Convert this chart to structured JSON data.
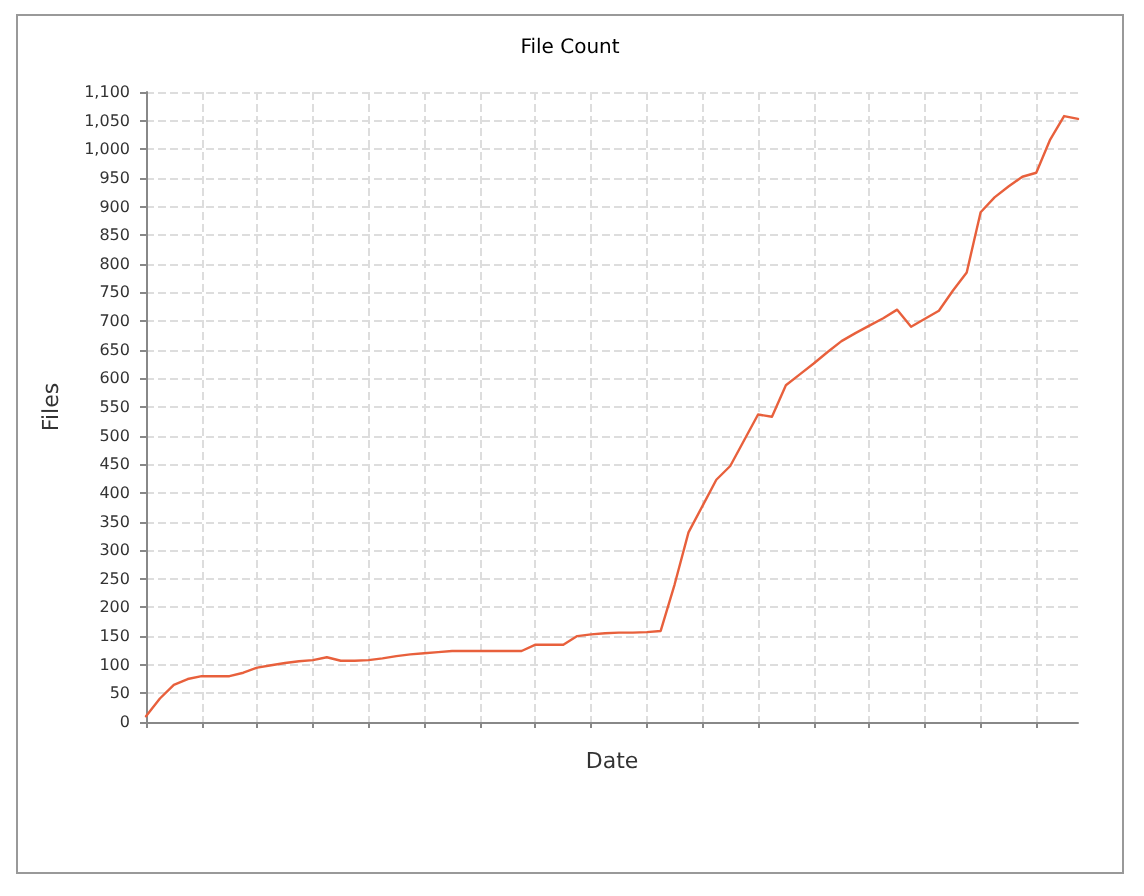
{
  "chart_data": {
    "type": "line",
    "title": "File Count",
    "xlabel": "Date",
    "ylabel": "Files",
    "categories": [
      null,
      null,
      null,
      null,
      null,
      null,
      null,
      null,
      null,
      null,
      null,
      null,
      null,
      null,
      null,
      null,
      null,
      null,
      null,
      null,
      null,
      null,
      null,
      null,
      null,
      null,
      null,
      null,
      null,
      null,
      null,
      null,
      null,
      null,
      null,
      null,
      null,
      null,
      null,
      null,
      null,
      null,
      null,
      null,
      null,
      null,
      null,
      null,
      null,
      null,
      null,
      null,
      null,
      null,
      null,
      null,
      null,
      null,
      null,
      null,
      null,
      null,
      null,
      null,
      null,
      null,
      null,
      null
    ],
    "series": [
      {
        "color": "#e8603c",
        "values": [
          10,
          41,
          65,
          75,
          80,
          80,
          80,
          86,
          95,
          99,
          103,
          106,
          108,
          113,
          107,
          107,
          108,
          111,
          115,
          118,
          120,
          122,
          124,
          124,
          124,
          124,
          124,
          124,
          135,
          135,
          135,
          150,
          153,
          155,
          156,
          156,
          157,
          159,
          240,
          331,
          377,
          423,
          447,
          492,
          537,
          533,
          588,
          607,
          626,
          646,
          665,
          679,
          692,
          705,
          720,
          690,
          704,
          718,
          753,
          785,
          890,
          916,
          935,
          952,
          959,
          1017,
          1058,
          1053
        ]
      }
    ],
    "ylim": [
      0,
      1100
    ],
    "yticks": [
      0,
      50,
      100,
      150,
      200,
      250,
      300,
      350,
      400,
      450,
      500,
      550,
      600,
      650,
      700,
      750,
      800,
      850,
      900,
      950,
      {
        "value": 1000,
        "label": "1,000"
      },
      {
        "value": 1050,
        "label": "1,050"
      },
      {
        "value": 1100,
        "label": "1,100"
      }
    ],
    "tick_labels": "y",
    "grid": true,
    "line_style": "solid"
  }
}
